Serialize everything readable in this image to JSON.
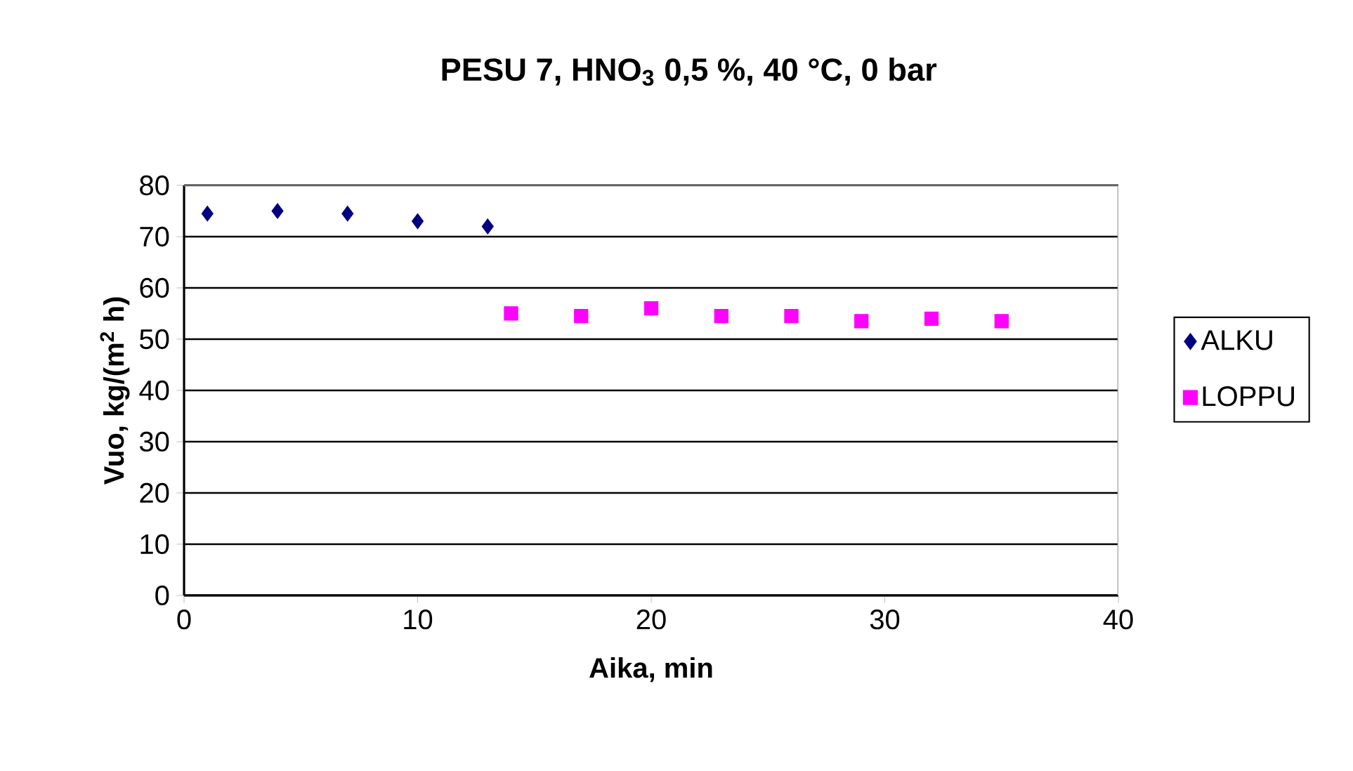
{
  "chart_data": {
    "type": "scatter",
    "title": "PESU 7, HNO$_{3}$ 0,5 %, 40 °C, 0 bar",
    "xlabel": "Aika, min",
    "ylabel": "Vuo, kg/(m$^{2}$ h)",
    "series": [
      {
        "name": "ALKU",
        "color": "#000080",
        "marker": "diamond",
        "x": [
          1,
          4,
          7,
          10,
          13
        ],
        "values": [
          74.5,
          75,
          74.5,
          73,
          72
        ]
      },
      {
        "name": "LOPPU",
        "color": "#ff00ff",
        "marker": "square",
        "x": [
          14,
          17,
          20,
          23,
          26,
          29,
          32,
          35
        ],
        "values": [
          55,
          54.5,
          56,
          54.5,
          54.5,
          53.5,
          54,
          53.5
        ]
      }
    ],
    "xlim": [
      0,
      40
    ],
    "ylim": [
      0,
      80
    ],
    "xticks": [
      0,
      10,
      20,
      30,
      40
    ],
    "yticks": [
      0,
      10,
      20,
      30,
      40,
      50,
      60,
      70,
      80
    ],
    "grid": "y",
    "legend": "right"
  }
}
